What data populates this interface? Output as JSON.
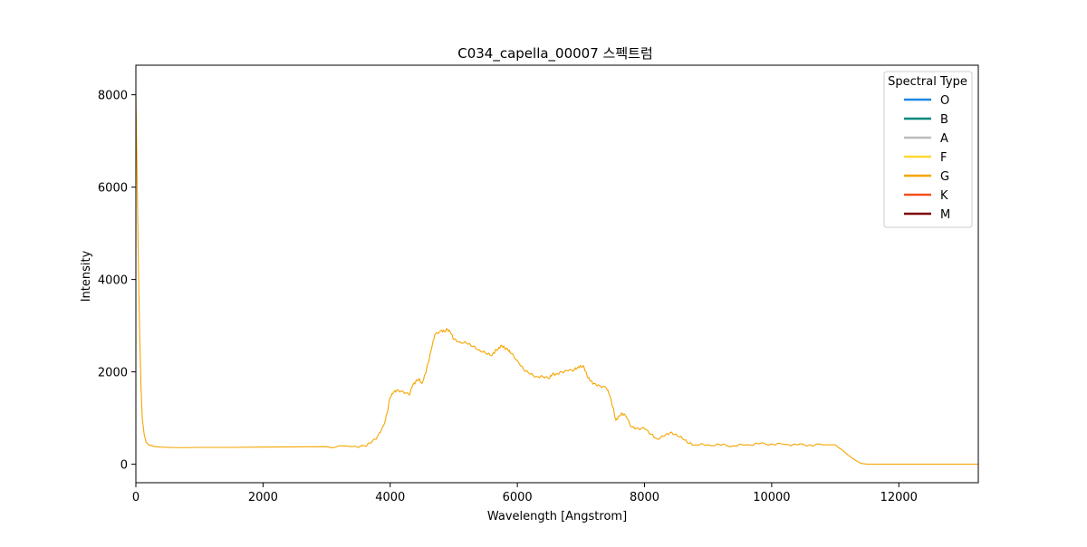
{
  "chart_data": {
    "type": "line",
    "title": "C034_capella_00007 스펙트럼",
    "xlabel": "Wavelength [Angstrom]",
    "ylabel": "Intensity",
    "xlim": [
      0,
      13250
    ],
    "ylim": [
      -400,
      8640
    ],
    "xticks": [
      0,
      2000,
      4000,
      6000,
      8000,
      10000,
      12000
    ],
    "yticks": [
      0,
      2000,
      4000,
      6000,
      8000
    ],
    "grid": false,
    "legend": {
      "title": "Spectral Type",
      "placement": "top-right",
      "entries": [
        {
          "label": "O",
          "color": "#1e88e5"
        },
        {
          "label": "B",
          "color": "#00897b"
        },
        {
          "label": "A",
          "color": "#bdbdbd"
        },
        {
          "label": "F",
          "color": "#fdd835"
        },
        {
          "label": "G",
          "color": "#f5a500"
        },
        {
          "label": "K",
          "color": "#f4511e"
        },
        {
          "label": "M",
          "color": "#7f0000"
        }
      ]
    },
    "series": [
      {
        "color": "#f5a500",
        "x": [
          0,
          20,
          40,
          60,
          80,
          100,
          130,
          160,
          200,
          250,
          300,
          400,
          600,
          800,
          1000,
          1500,
          2000,
          2500,
          3000,
          3400,
          3600,
          3700,
          3800,
          3900,
          3950,
          4000,
          4050,
          4100,
          4200,
          4300,
          4350,
          4400,
          4450,
          4500,
          4550,
          4600,
          4650,
          4700,
          4800,
          4850,
          4900,
          4950,
          5000,
          5100,
          5200,
          5300,
          5400,
          5500,
          5600,
          5650,
          5700,
          5750,
          5800,
          5850,
          5900,
          6000,
          6100,
          6200,
          6300,
          6400,
          6500,
          6550,
          6600,
          6700,
          6800,
          6900,
          6950,
          7000,
          7050,
          7100,
          7150,
          7200,
          7300,
          7400,
          7450,
          7500,
          7550,
          7600,
          7650,
          7700,
          7800,
          7900,
          8000,
          8100,
          8200,
          8300,
          8400,
          8500,
          8600,
          8700,
          8800,
          9000,
          9200,
          9400,
          9600,
          9800,
          10000,
          10200,
          10400,
          10600,
          10800,
          11000,
          11050,
          11100,
          11200,
          11300,
          11400,
          11500,
          12000,
          12500,
          13250
        ],
        "y": [
          8000,
          6200,
          4300,
          2800,
          1700,
          1000,
          650,
          480,
          420,
          400,
          380,
          370,
          360,
          360,
          365,
          365,
          370,
          375,
          380,
          380,
          400,
          460,
          600,
          850,
          1100,
          1450,
          1550,
          1600,
          1580,
          1500,
          1700,
          1780,
          1850,
          1750,
          1950,
          2200,
          2500,
          2800,
          2900,
          2880,
          2920,
          2850,
          2700,
          2650,
          2620,
          2550,
          2480,
          2400,
          2350,
          2450,
          2500,
          2580,
          2520,
          2480,
          2400,
          2250,
          2050,
          1950,
          1900,
          1900,
          1850,
          1950,
          1950,
          2000,
          2020,
          2050,
          2100,
          2130,
          2100,
          1900,
          1800,
          1750,
          1700,
          1650,
          1500,
          1250,
          950,
          1050,
          1100,
          1050,
          800,
          780,
          770,
          650,
          550,
          600,
          680,
          650,
          550,
          450,
          420,
          420,
          410,
          400,
          420,
          440,
          440,
          430,
          420,
          420,
          420,
          420,
          360,
          320,
          200,
          100,
          20,
          0,
          0,
          0,
          0
        ]
      }
    ]
  }
}
